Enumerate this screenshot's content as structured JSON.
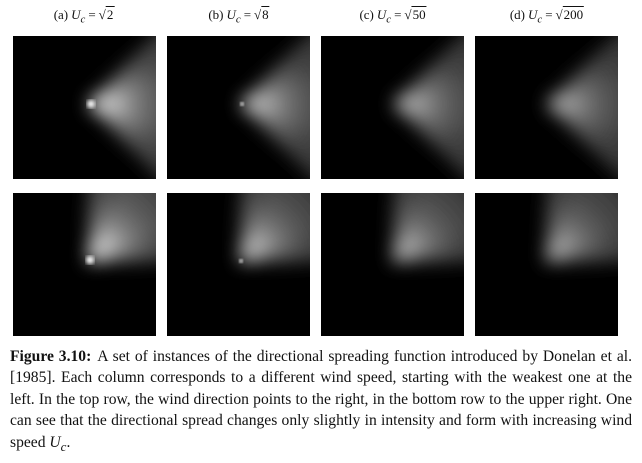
{
  "columns": [
    {
      "label": "(a)",
      "variable": "U",
      "subscript": "c",
      "equals": "=",
      "radical": "√",
      "radicand": "2"
    },
    {
      "label": "(b)",
      "variable": "U",
      "subscript": "c",
      "equals": "=",
      "radical": "√",
      "radicand": "8"
    },
    {
      "label": "(c)",
      "variable": "U",
      "subscript": "c",
      "equals": "=",
      "radical": "√",
      "radicand": "50"
    },
    {
      "label": "(d)",
      "variable": "U",
      "subscript": "c",
      "equals": "=",
      "radical": "√",
      "radicand": "200"
    }
  ],
  "rows": [
    {
      "wind_direction": "right"
    },
    {
      "wind_direction": "upper right"
    }
  ],
  "caption": {
    "label": "Figure 3.10:",
    "text": "A set of instances of the directional spreading function introduced by Donelan et al. [1985]. Each column corresponds to a different wind speed, starting with the weakest one at the left. In the top row, the wind direction points to the right, in the bottom row to the upper right. One can see that the directional spread changes only slightly in intensity and form with increasing wind speed ",
    "symbol": "U",
    "symbol_sub": "c",
    "end": "."
  }
}
